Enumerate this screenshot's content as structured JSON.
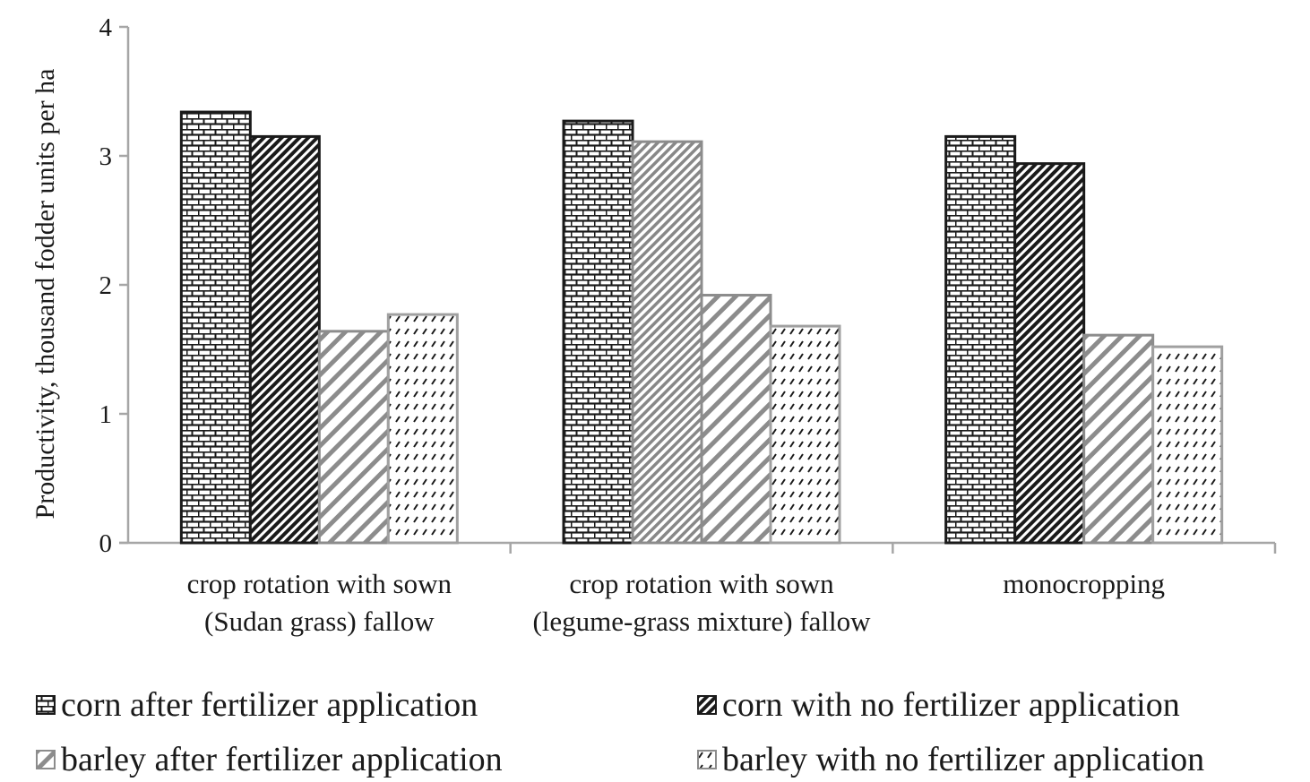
{
  "chart_data": {
    "type": "bar",
    "ylabel": "Productivity, thousand fodder units per ha",
    "ylim": [
      0,
      4
    ],
    "yticks": [
      "0",
      "1",
      "2",
      "3",
      "4"
    ],
    "categories": [
      [
        "crop rotation with sown",
        "(Sudan grass) fallow"
      ],
      [
        "crop rotation with sown",
        "(legume-grass mixture) fallow"
      ],
      [
        "monocropping"
      ]
    ],
    "series": [
      {
        "name": "corn after fertilizer application",
        "values": [
          3.34,
          3.27,
          3.15
        ],
        "pattern": "brick"
      },
      {
        "name": "corn with no fertilizer application",
        "values": [
          3.15,
          3.11,
          2.94
        ],
        "pattern": "dense-diagonal"
      },
      {
        "name": "barley after fertilizer application",
        "values": [
          1.64,
          1.92,
          1.61
        ],
        "pattern": "wide-diagonal"
      },
      {
        "name": "barley with no fertilizer application",
        "values": [
          1.77,
          1.68,
          1.52
        ],
        "pattern": "dashed"
      }
    ],
    "grid": false,
    "legend_position": "bottom"
  }
}
